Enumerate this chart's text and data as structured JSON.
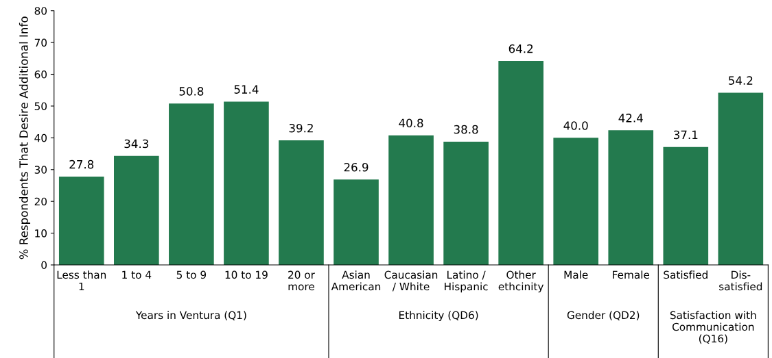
{
  "chart_data": {
    "type": "bar",
    "ylabel": "% Respondents That Desire Additional Info",
    "categories": [
      "Less than\n1",
      "1 to 4",
      "5 to 9",
      "10 to 19",
      "20 or\nmore",
      "Asian\nAmerican",
      "Caucasian\n/ White",
      "Latino /\nHispanic",
      "Other\nethcinity",
      "Male",
      "Female",
      "Satisfied",
      "Dis-\nsatisfied"
    ],
    "values": [
      27.8,
      34.3,
      50.8,
      51.4,
      39.2,
      26.9,
      40.8,
      38.8,
      64.2,
      40.0,
      42.4,
      37.1,
      54.2
    ],
    "value_labels": [
      "27.8",
      "34.3",
      "50.8",
      "51.4",
      "39.2",
      "26.9",
      "40.8",
      "38.8",
      "64.2",
      "40.0",
      "42.4",
      "37.1",
      "54.2"
    ],
    "color": "#237a4e",
    "ylim": [
      0,
      80
    ],
    "yticks": [
      0,
      10,
      20,
      30,
      40,
      50,
      60,
      70,
      80
    ],
    "grid": false,
    "legend": false,
    "annotations": [
      "Years in Ventura (Q1)",
      "Ethnicity (QD6)",
      "Gender (QD2)",
      "Satisfaction with\nCommunication\n(Q16)"
    ]
  }
}
